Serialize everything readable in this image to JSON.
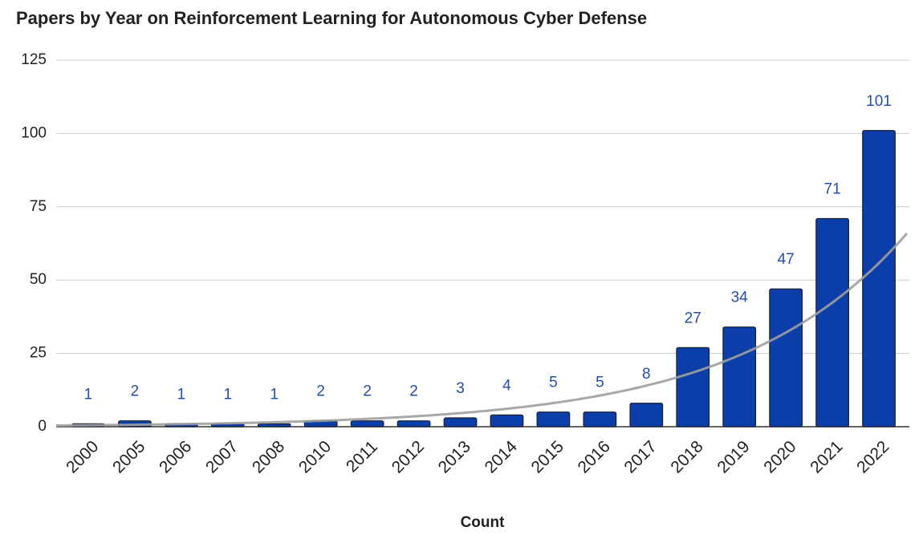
{
  "chart_data": {
    "type": "bar",
    "title": "Papers by Year on Reinforcement Learning for Autonomous Cyber Defense",
    "x_label": "Count",
    "categories": [
      "2000",
      "2005",
      "2006",
      "2007",
      "2008",
      "2010",
      "2011",
      "2012",
      "2013",
      "2014",
      "2015",
      "2016",
      "2017",
      "2018",
      "2019",
      "2020",
      "2021",
      "2022"
    ],
    "values": [
      1,
      2,
      1,
      1,
      1,
      2,
      2,
      2,
      3,
      4,
      5,
      5,
      8,
      27,
      34,
      47,
      71,
      101
    ],
    "color": "#0b3ea8",
    "label_color": "#1f4fa8",
    "trendline": "exponential",
    "trendline_color": "#9e9e9e",
    "ylim": [
      0,
      125
    ],
    "yticks": [
      0,
      25,
      50,
      75,
      100,
      125
    ],
    "grid": true
  }
}
